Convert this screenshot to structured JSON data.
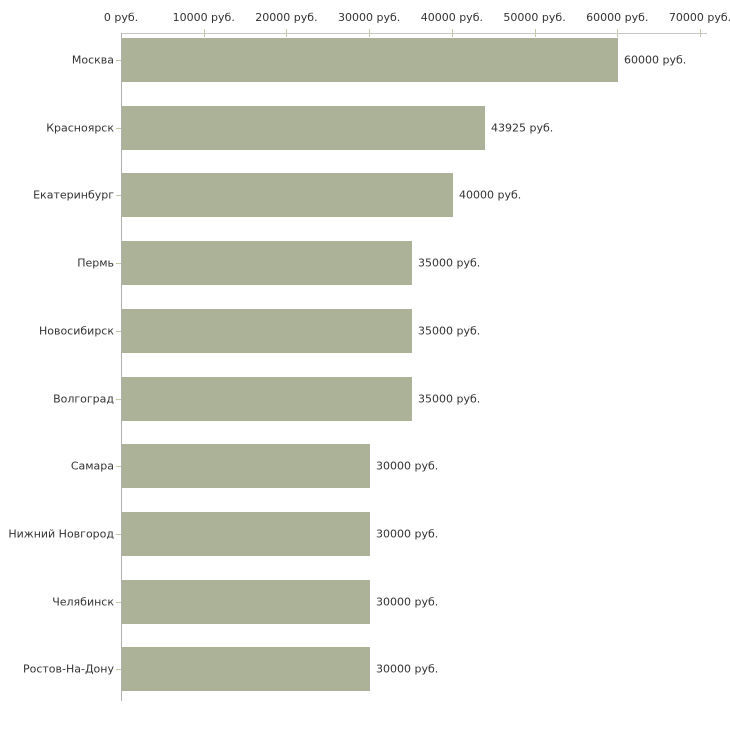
{
  "chart_data": {
    "type": "bar",
    "orientation": "horizontal",
    "title": "",
    "categories": [
      "Москва",
      "Красноярск",
      "Екатеринбург",
      "Пермь",
      "Новосибирск",
      "Волгоград",
      "Самара",
      "Нижний Новгород",
      "Челябинск",
      "Ростов-На-Дону"
    ],
    "values": [
      60000,
      43925,
      40000,
      35000,
      35000,
      35000,
      30000,
      30000,
      30000,
      30000
    ],
    "value_labels": [
      "60000 руб.",
      "43925 руб.",
      "40000 руб.",
      "35000 руб.",
      "35000 руб.",
      "35000 руб.",
      "30000 руб.",
      "30000 руб.",
      "30000 руб.",
      "30000 руб."
    ],
    "x_ticks": [
      0,
      10000,
      20000,
      30000,
      40000,
      50000,
      60000,
      70000
    ],
    "x_tick_labels": [
      "0 руб.",
      "10000 руб.",
      "20000 руб.",
      "30000 руб.",
      "40000 руб.",
      "50000 руб.",
      "60000 руб.",
      "70000 руб."
    ],
    "xlim": [
      0,
      70000
    ],
    "unit": "руб.",
    "xlabel": "",
    "ylabel": "",
    "grid": false,
    "legend": null,
    "colors": {
      "bar": "#abb298",
      "tick": "#c9c6a3",
      "x_axis_line": "#c6c6c6",
      "y_axis_line": "#b0b0b0",
      "text": "#333333",
      "background": "#ffffff"
    }
  }
}
